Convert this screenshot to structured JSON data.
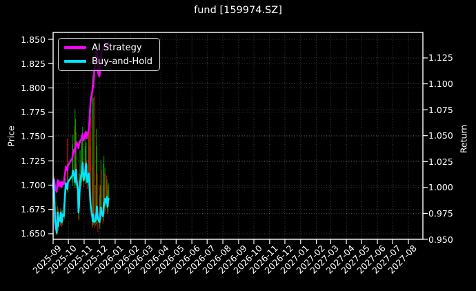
{
  "title": "fund [159974.SZ]",
  "legend": {
    "items": [
      {
        "label": "AI Strategy",
        "color": "#ff00ff"
      },
      {
        "label": "Buy-and-Hold",
        "color": "#00e5ff"
      }
    ]
  },
  "axes": {
    "left_label": "Price",
    "right_label": "Return",
    "price_tick_labels": [
      "1.850",
      "1.825",
      "1.800",
      "1.775",
      "1.750",
      "1.725",
      "1.700",
      "1.675",
      "1.650"
    ],
    "return_tick_labels": [
      "1.125",
      "1.100",
      "1.075",
      "1.050",
      "1.025",
      "1.000",
      "0.975",
      "0.950"
    ],
    "x_tick_labels": [
      "2025-09",
      "2025-10",
      "2025-11",
      "2025-12",
      "2026-01",
      "2026-02",
      "2026-03",
      "2026-04",
      "2026-05",
      "2026-06",
      "2026-07",
      "2026-08",
      "2026-09",
      "2026-10",
      "2026-11",
      "2026-12",
      "2027-01",
      "2027-02",
      "2027-03",
      "2027-04",
      "2027-05",
      "2027-06",
      "2027-07",
      "2027-08"
    ]
  },
  "colors": {
    "background": "#000000",
    "spine": "#ffffff",
    "grid": "#9a9a9a",
    "candle_up": "#00a400",
    "candle_down": "#e60000",
    "ai_line": "#ff00ff",
    "bh_line": "#00e5ff",
    "text": "#ffffff"
  },
  "chart_data": {
    "type": "candlestick+line",
    "title": "fund [159974.SZ]",
    "x_start_date": "2025-09-01",
    "x_end_month": "2027-08",
    "price_axis": {
      "label": "Price",
      "ticks": [
        1.85,
        1.825,
        1.8,
        1.775,
        1.75,
        1.725,
        1.7,
        1.675,
        1.65
      ],
      "ylim": [
        1.6443,
        1.8571
      ]
    },
    "return_axis": {
      "label": "Return",
      "ticks": [
        1.125,
        1.1,
        1.075,
        1.05,
        1.025,
        1.0,
        0.975,
        0.95
      ],
      "ylim": [
        0.95,
        1.1496
      ]
    },
    "grid": "dotted-both-axes",
    "legend_position": "upper-left",
    "dates": [
      "2025-09-01",
      "2025-09-02",
      "2025-09-03",
      "2025-09-04",
      "2025-09-05",
      "2025-09-08",
      "2025-09-09",
      "2025-09-10",
      "2025-09-11",
      "2025-09-12",
      "2025-09-15",
      "2025-09-16",
      "2025-09-17",
      "2025-09-18",
      "2025-09-19",
      "2025-09-22",
      "2025-09-23",
      "2025-09-24",
      "2025-09-25",
      "2025-09-26",
      "2025-09-29",
      "2025-09-30",
      "2025-10-09",
      "2025-10-10",
      "2025-10-13",
      "2025-10-14",
      "2025-10-15",
      "2025-10-16",
      "2025-10-17",
      "2025-10-20",
      "2025-10-21",
      "2025-10-22",
      "2025-10-23",
      "2025-10-24",
      "2025-10-27",
      "2025-10-28",
      "2025-10-29",
      "2025-10-30",
      "2025-10-31",
      "2025-11-03",
      "2025-11-04",
      "2025-11-05",
      "2025-11-06",
      "2025-11-07",
      "2025-11-10",
      "2025-11-11",
      "2025-11-12",
      "2025-11-13",
      "2025-11-14",
      "2025-11-17",
      "2025-11-18",
      "2025-11-19",
      "2025-11-20",
      "2025-11-21",
      "2025-11-24",
      "2025-11-25",
      "2025-11-26",
      "2025-11-27",
      "2025-11-28",
      "2025-12-01",
      "2025-12-02",
      "2025-12-03",
      "2025-12-04",
      "2025-12-05",
      "2025-12-08",
      "2025-12-09",
      "2025-12-10",
      "2025-12-11",
      "2025-12-12",
      "2025-12-15",
      "2025-12-16",
      "2025-12-17",
      "2025-12-18",
      "2025-12-19"
    ],
    "ohlc": [
      [
        1.7,
        1.712,
        1.692,
        1.697
      ],
      [
        1.697,
        1.71,
        1.69,
        1.706
      ],
      [
        1.706,
        1.709,
        1.688,
        1.694
      ],
      [
        1.694,
        1.697,
        1.672,
        1.678
      ],
      [
        1.678,
        1.682,
        1.656,
        1.662
      ],
      [
        1.662,
        1.668,
        1.648,
        1.651
      ],
      [
        1.651,
        1.67,
        1.649,
        1.664
      ],
      [
        1.664,
        1.678,
        1.66,
        1.672
      ],
      [
        1.672,
        1.675,
        1.653,
        1.658
      ],
      [
        1.658,
        1.672,
        1.655,
        1.667
      ],
      [
        1.667,
        1.67,
        1.658,
        1.663
      ],
      [
        1.663,
        1.676,
        1.66,
        1.672
      ],
      [
        1.672,
        1.675,
        1.661,
        1.665
      ],
      [
        1.665,
        1.669,
        1.657,
        1.662
      ],
      [
        1.662,
        1.674,
        1.659,
        1.67
      ],
      [
        1.67,
        1.674,
        1.663,
        1.668
      ],
      [
        1.668,
        1.682,
        1.665,
        1.678
      ],
      [
        1.678,
        1.69,
        1.674,
        1.686
      ],
      [
        1.686,
        1.699,
        1.683,
        1.695
      ],
      [
        1.695,
        1.707,
        1.691,
        1.702
      ],
      [
        1.702,
        1.748,
        1.694,
        1.696
      ],
      [
        1.696,
        1.722,
        1.692,
        1.703
      ],
      [
        1.703,
        1.742,
        1.699,
        1.71
      ],
      [
        1.71,
        1.752,
        1.706,
        1.715
      ],
      [
        1.715,
        1.76,
        1.702,
        1.709
      ],
      [
        1.7,
        1.778,
        1.697,
        1.703
      ],
      [
        1.703,
        1.768,
        1.7,
        1.711
      ],
      [
        1.711,
        1.755,
        1.705,
        1.716
      ],
      [
        1.716,
        1.722,
        1.698,
        1.705
      ],
      [
        1.705,
        1.712,
        1.688,
        1.694
      ],
      [
        1.694,
        1.698,
        1.665,
        1.672
      ],
      [
        1.672,
        1.684,
        1.664,
        1.68
      ],
      [
        1.68,
        1.712,
        1.676,
        1.693
      ],
      [
        1.693,
        1.736,
        1.689,
        1.703
      ],
      [
        1.703,
        1.744,
        1.699,
        1.712
      ],
      [
        1.712,
        1.748,
        1.708,
        1.718
      ],
      [
        1.718,
        1.76,
        1.714,
        1.723
      ],
      [
        1.723,
        1.728,
        1.704,
        1.712
      ],
      [
        1.712,
        1.718,
        1.698,
        1.705
      ],
      [
        1.705,
        1.74,
        1.701,
        1.713
      ],
      [
        1.713,
        1.752,
        1.709,
        1.72
      ],
      [
        1.72,
        1.744,
        1.714,
        1.722
      ],
      [
        1.722,
        1.726,
        1.702,
        1.71
      ],
      [
        1.71,
        1.715,
        1.696,
        1.703
      ],
      [
        1.703,
        1.758,
        1.699,
        1.712
      ],
      [
        1.712,
        1.77,
        1.7,
        1.706
      ],
      [
        1.706,
        1.755,
        1.69,
        1.695
      ],
      [
        1.695,
        1.74,
        1.682,
        1.685
      ],
      [
        1.685,
        1.77,
        1.678,
        1.678
      ],
      [
        1.662,
        1.813,
        1.658,
        1.668
      ],
      [
        1.668,
        1.72,
        1.656,
        1.663
      ],
      [
        1.663,
        1.79,
        1.659,
        1.67
      ],
      [
        1.67,
        1.7,
        1.66,
        1.665
      ],
      [
        1.67,
        1.792,
        1.656,
        1.662
      ],
      [
        1.662,
        1.7,
        1.658,
        1.664
      ],
      [
        1.664,
        1.758,
        1.66,
        1.671
      ],
      [
        1.671,
        1.74,
        1.664,
        1.678
      ],
      [
        1.678,
        1.712,
        1.666,
        1.672
      ],
      [
        1.672,
        1.676,
        1.652,
        1.666
      ],
      [
        1.666,
        1.7,
        1.658,
        1.662
      ],
      [
        1.662,
        1.69,
        1.655,
        1.665
      ],
      [
        1.665,
        1.7,
        1.661,
        1.671
      ],
      [
        1.671,
        1.726,
        1.667,
        1.677
      ],
      [
        1.677,
        1.716,
        1.665,
        1.672
      ],
      [
        1.672,
        1.7,
        1.66,
        1.668
      ],
      [
        1.668,
        1.722,
        1.663,
        1.675
      ],
      [
        1.675,
        1.73,
        1.67,
        1.682
      ],
      [
        1.682,
        1.712,
        1.67,
        1.679
      ],
      [
        1.679,
        1.718,
        1.673,
        1.686
      ],
      [
        1.686,
        1.71,
        1.68,
        1.682
      ],
      [
        1.682,
        1.706,
        1.676,
        1.688
      ],
      [
        1.688,
        1.7,
        1.67,
        1.678
      ],
      [
        1.678,
        1.695,
        1.672,
        1.684
      ],
      [
        1.684,
        1.702,
        1.678,
        1.686
      ]
    ],
    "series": [
      {
        "name": "AI Strategy",
        "color": "#ff00ff",
        "units": "price-equivalent",
        "values": [
          1.703,
          1.698,
          1.706,
          1.702,
          1.697,
          1.693,
          1.7,
          1.705,
          1.699,
          1.704,
          1.699,
          1.703,
          1.7,
          1.698,
          1.703,
          1.701,
          1.706,
          1.71,
          1.714,
          1.719,
          1.715,
          1.72,
          1.728,
          1.733,
          1.737,
          1.734,
          1.738,
          1.742,
          1.744,
          1.74,
          1.738,
          1.742,
          1.745,
          1.744,
          1.748,
          1.75,
          1.753,
          1.748,
          1.746,
          1.752,
          1.755,
          1.753,
          1.748,
          1.752,
          1.756,
          1.762,
          1.77,
          1.78,
          1.788,
          1.796,
          1.803,
          1.8,
          1.808,
          1.818,
          1.828,
          1.836,
          1.84,
          1.83,
          1.816,
          1.812,
          1.815,
          1.822,
          1.83,
          1.836,
          1.84,
          1.843,
          1.841,
          1.844,
          1.846,
          1.842,
          1.845,
          1.84,
          1.844,
          1.847
        ]
      },
      {
        "name": "Buy-and-Hold",
        "color": "#00e5ff",
        "units": "price-equivalent",
        "values": [
          1.697,
          1.706,
          1.694,
          1.678,
          1.662,
          1.651,
          1.664,
          1.672,
          1.658,
          1.667,
          1.663,
          1.672,
          1.665,
          1.662,
          1.67,
          1.668,
          1.678,
          1.686,
          1.695,
          1.702,
          1.696,
          1.703,
          1.71,
          1.715,
          1.709,
          1.703,
          1.711,
          1.716,
          1.705,
          1.694,
          1.672,
          1.68,
          1.693,
          1.703,
          1.712,
          1.718,
          1.723,
          1.712,
          1.705,
          1.713,
          1.72,
          1.722,
          1.71,
          1.703,
          1.712,
          1.706,
          1.695,
          1.685,
          1.678,
          1.668,
          1.663,
          1.67,
          1.665,
          1.662,
          1.664,
          1.671,
          1.678,
          1.672,
          1.666,
          1.662,
          1.665,
          1.671,
          1.677,
          1.672,
          1.668,
          1.675,
          1.682,
          1.679,
          1.686,
          1.682,
          1.688,
          1.678,
          1.684,
          1.686
        ]
      }
    ]
  }
}
